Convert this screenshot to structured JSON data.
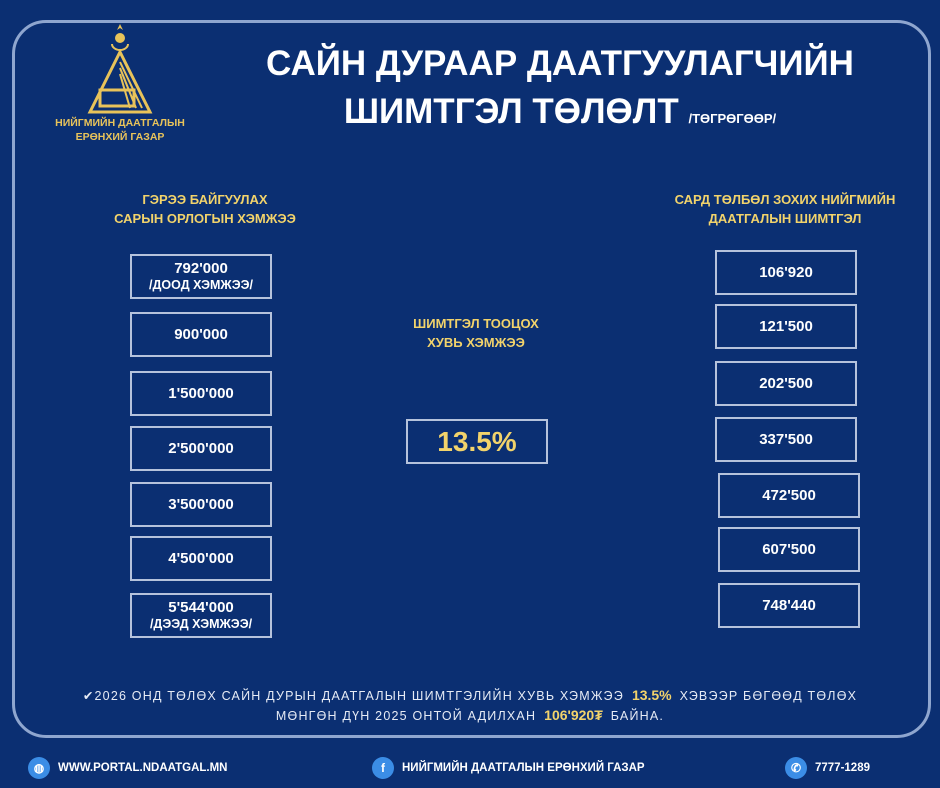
{
  "logo": {
    "org_line1": "НИЙГМИЙН ДААТГАЛЫН",
    "org_line2": "ЕРӨНХИЙ ГАЗАР"
  },
  "title": {
    "line1": "САЙН ДУРААР ДААТГУУЛАГЧИЙН",
    "line2": "ШИМТГЭЛ ТӨЛӨЛТ",
    "unit": "/ТӨГРӨГӨӨР/"
  },
  "left": {
    "header1": "ГЭРЭЭ БАЙГУУЛАХ",
    "header2": "САРЫН ОРЛОГЫН ХЭМЖЭЭ",
    "items": [
      {
        "value": "792'000",
        "note": "/ДООД ХЭМЖЭЭ/"
      },
      {
        "value": "900'000"
      },
      {
        "value": "1'500'000"
      },
      {
        "value": "2'500'000"
      },
      {
        "value": "3'500'000"
      },
      {
        "value": "4'500'000"
      },
      {
        "value": "5'544'000",
        "note": "/ДЭЭД ХЭМЖЭЭ/"
      }
    ]
  },
  "center": {
    "header1": "ШИМТГЭЛ ТООЦОХ",
    "header2": "ХУВЬ ХЭМЖЭЭ",
    "rate": "13.5%"
  },
  "right": {
    "header1": "САРД ТӨЛБӨЛ ЗОХИХ НИЙГМИЙН",
    "header2": "ДААТГАЛЫН ШИМТГЭЛ",
    "items": [
      "106'920",
      "121'500",
      "202'500",
      "337'500",
      "472'500",
      "607'500",
      "748'440"
    ]
  },
  "footer_note": {
    "part1": "2026 ОНД ТӨЛӨХ САЙН ДУРЫН ДААТГАЛЫН ШИМТГЭЛИЙН ХУВЬ ХЭМЖЭЭ",
    "rate": "13.5%",
    "part2": "ХЭВЭЭР БӨГӨӨД ТӨЛӨХ",
    "part3": "МӨНГӨН ДҮН 2025 ОНТОЙ АДИЛХАН",
    "amount": "106'920₮",
    "part4": "БАЙНА."
  },
  "contacts": {
    "website": "WWW.PORTAL.NDAATGAL.MN",
    "facebook": "НИЙГМИЙН ДААТГАЛЫН ЕРӨНХИЙ ГАЗАР",
    "phone": "7777-1289"
  },
  "colors": {
    "background": "#0b2f72",
    "accent": "#f2d36b",
    "border": "#8fa6cf"
  }
}
